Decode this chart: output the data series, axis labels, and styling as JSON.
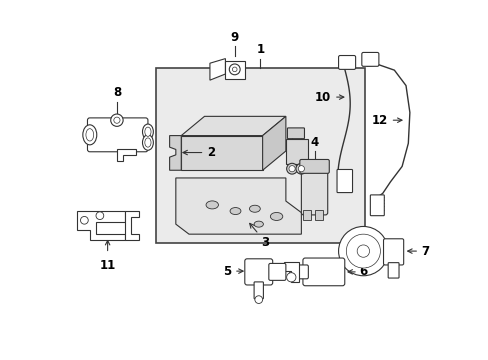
{
  "bg_color": "#ffffff",
  "box_fill": "#ebebeb",
  "box_border": "#444444",
  "lc": "#333333",
  "lw": 0.8,
  "label_fs": 8.5,
  "label_color": "#000000"
}
